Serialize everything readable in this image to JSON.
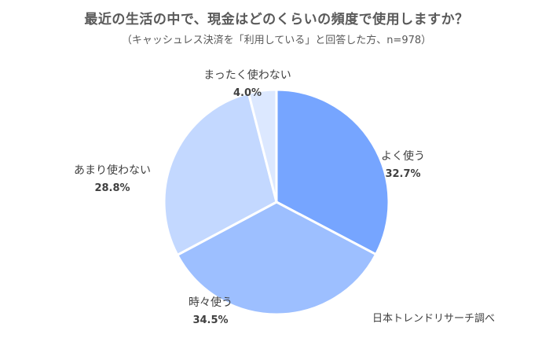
{
  "chart_data": {
    "type": "pie",
    "title": "最近の生活の中で、現金はどのくらいの頻度で使用しますか？",
    "subtitle": "（キャッシュレス決済を「利用している」と回答した方、n=978）",
    "start_angle_deg": 0,
    "direction": "clockwise",
    "slices": [
      {
        "label": "よく使う",
        "value": 32.7,
        "value_text": "32.7%",
        "color": "#76A5FF"
      },
      {
        "label": "時々使う",
        "value": 34.5,
        "value_text": "34.5%",
        "color": "#9DBFFF"
      },
      {
        "label": "あまり使わない",
        "value": 28.8,
        "value_text": "28.8%",
        "color": "#C3D8FF"
      },
      {
        "label": "まったく使わない",
        "value": 4.0,
        "value_text": "4.0%",
        "color": "#DCE8FF"
      }
    ],
    "slice_border_color": "#FFFFFF",
    "source": "日本トレンドリサーチ調べ"
  }
}
